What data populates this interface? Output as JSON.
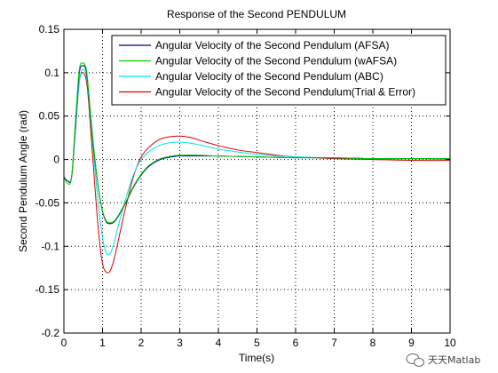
{
  "chart_data": {
    "type": "line",
    "title": "Response of the Second PENDULUM",
    "xlabel": "Time(s)",
    "ylabel": "Second Pendulum Angle (rad)",
    "xlim": [
      0,
      10
    ],
    "ylim": [
      -0.2,
      0.15
    ],
    "xticks": [
      0,
      1,
      2,
      3,
      4,
      5,
      6,
      7,
      8,
      9,
      10
    ],
    "yticks": [
      -0.2,
      -0.15,
      -0.1,
      -0.05,
      0,
      0.05,
      0.1,
      0.15
    ],
    "xtick_labels": [
      "0",
      "1",
      "2",
      "3",
      "4",
      "5",
      "6",
      "7",
      "8",
      "9",
      "10"
    ],
    "ytick_labels": [
      "-0.2",
      "-0.15",
      "-0.1",
      "-0.05",
      "0",
      "0.05",
      "0.1",
      "0.15"
    ],
    "grid": true,
    "legend_position": "top-right",
    "series": [
      {
        "name": "Angular Velocity of the Second Pendulum (AFSA)",
        "color": "#000080",
        "x": [
          0,
          0.1,
          0.2,
          0.3,
          0.4,
          0.5,
          0.55,
          0.6,
          0.7,
          0.8,
          0.9,
          1.0,
          1.1,
          1.2,
          1.3,
          1.4,
          1.6,
          1.8,
          2.0,
          2.2,
          2.5,
          2.8,
          3.0,
          3.5,
          4,
          5,
          6,
          7,
          8,
          9,
          10
        ],
        "y": [
          -0.02,
          -0.025,
          -0.02,
          0.04,
          0.1,
          0.108,
          0.106,
          0.095,
          0.045,
          0.0,
          -0.035,
          -0.06,
          -0.072,
          -0.074,
          -0.072,
          -0.066,
          -0.05,
          -0.032,
          -0.018,
          -0.008,
          0.0,
          0.003,
          0.004,
          0.004,
          0.004,
          0.003,
          0.002,
          0.002,
          0.001,
          0.001,
          0.001
        ]
      },
      {
        "name": "Angular Velocity of the Second Pendulum (wAFSA)",
        "color": "#00cc00",
        "x": [
          0,
          0.1,
          0.2,
          0.3,
          0.4,
          0.5,
          0.55,
          0.6,
          0.7,
          0.8,
          0.9,
          1.0,
          1.1,
          1.2,
          1.3,
          1.4,
          1.6,
          1.8,
          2.0,
          2.2,
          2.5,
          2.8,
          3.0,
          3.5,
          4,
          5,
          6,
          7,
          8,
          9,
          10
        ],
        "y": [
          -0.02,
          -0.028,
          -0.02,
          0.045,
          0.104,
          0.111,
          0.108,
          0.098,
          0.048,
          0.002,
          -0.034,
          -0.059,
          -0.071,
          -0.073,
          -0.071,
          -0.065,
          -0.049,
          -0.031,
          -0.017,
          -0.007,
          0.001,
          0.004,
          0.005,
          0.005,
          0.004,
          0.003,
          0.002,
          0.002,
          0.001,
          0.001,
          0.001
        ]
      },
      {
        "name": "Angular Velocity of the Second Pendulum (ABC)",
        "color": "#00e5e5",
        "x": [
          0,
          0.1,
          0.2,
          0.3,
          0.4,
          0.5,
          0.6,
          0.7,
          0.8,
          0.9,
          1.0,
          1.1,
          1.2,
          1.3,
          1.4,
          1.6,
          1.8,
          2.0,
          2.3,
          2.6,
          3.0,
          3.5,
          4,
          5,
          6,
          7,
          8,
          9,
          10
        ],
        "y": [
          -0.02,
          -0.025,
          -0.02,
          0.035,
          0.09,
          0.104,
          0.09,
          0.04,
          -0.01,
          -0.055,
          -0.09,
          -0.108,
          -0.108,
          -0.096,
          -0.078,
          -0.045,
          -0.018,
          0.0,
          0.012,
          0.018,
          0.02,
          0.017,
          0.012,
          0.006,
          0.003,
          0.002,
          0.001,
          0.001,
          0.0
        ]
      },
      {
        "name": "Angular Velocity of the Second Pendulum(Trial & Error)",
        "color": "#e00000",
        "x": [
          0,
          0.1,
          0.2,
          0.3,
          0.4,
          0.5,
          0.6,
          0.7,
          0.8,
          0.9,
          1.0,
          1.1,
          1.2,
          1.3,
          1.4,
          1.6,
          1.8,
          2.0,
          2.3,
          2.6,
          3.0,
          3.3,
          3.6,
          4,
          4.5,
          5,
          5.5,
          6,
          7,
          8,
          9,
          10
        ],
        "y": [
          -0.02,
          -0.025,
          -0.02,
          0.035,
          0.09,
          0.1,
          0.085,
          0.03,
          -0.03,
          -0.085,
          -0.12,
          -0.13,
          -0.128,
          -0.115,
          -0.095,
          -0.055,
          -0.02,
          0.003,
          0.018,
          0.025,
          0.027,
          0.025,
          0.021,
          0.016,
          0.011,
          0.008,
          0.005,
          0.003,
          0.001,
          0.0,
          -0.001,
          -0.001
        ]
      }
    ]
  },
  "watermark": {
    "text": "天天Matlab",
    "icon": "wechat-icon"
  }
}
